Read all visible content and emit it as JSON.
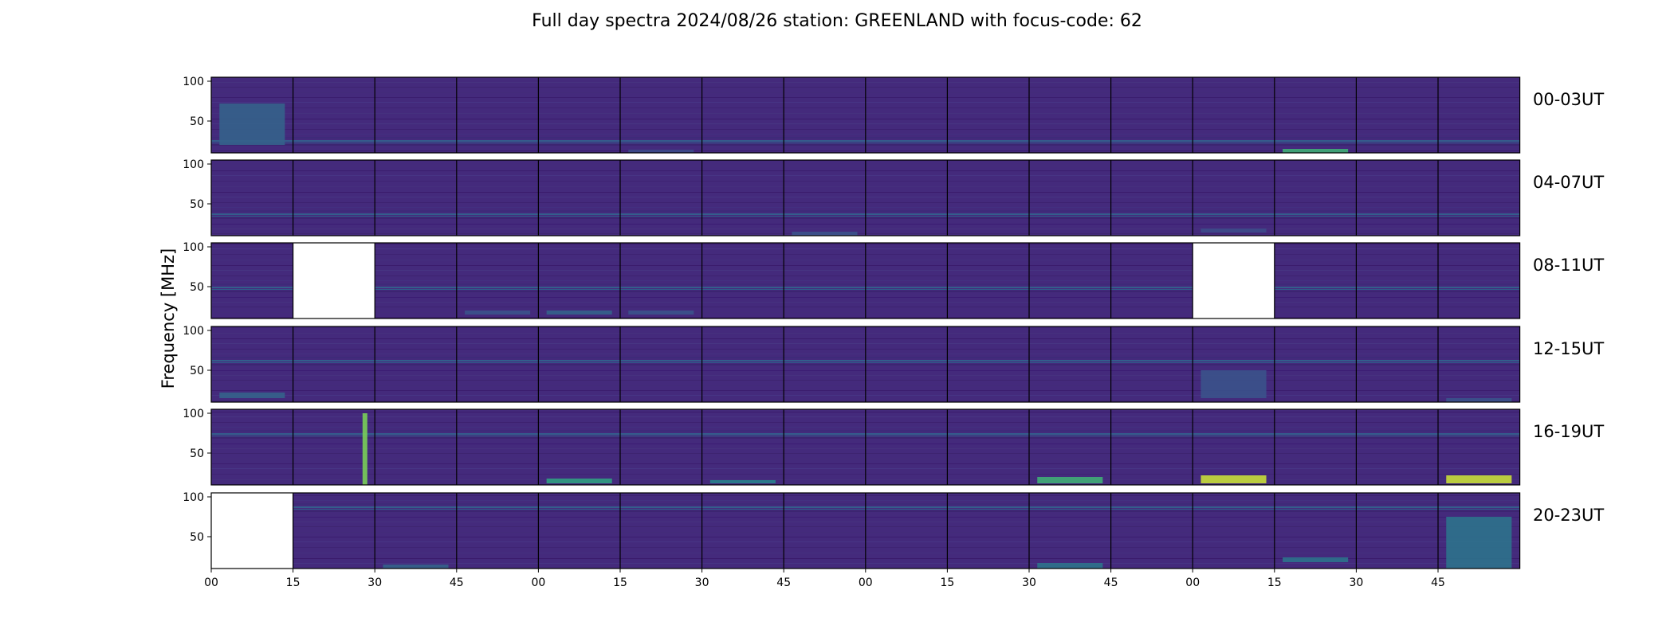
{
  "chart_data": {
    "type": "heatmap",
    "title": "Full day spectra 2024/08/26 station: GREENLAND with focus-code: 62",
    "ylabel": "Frequency [MHz]",
    "y_ticks": [
      "100",
      "50"
    ],
    "x_ticks": [
      "00",
      "15",
      "30",
      "45",
      "00",
      "15",
      "30",
      "45",
      "00",
      "15",
      "30",
      "45",
      "00",
      "15",
      "30",
      "45"
    ],
    "colormap": "viridis",
    "rows": [
      {
        "label": "00-03UT",
        "missing": [],
        "bursts": [
          {
            "panel": 0,
            "f_lo": 20,
            "f_hi": 72,
            "level": 0.35
          },
          {
            "panel": 13,
            "f_lo": 10,
            "f_hi": 15,
            "level": 0.6
          },
          {
            "panel": 5,
            "f_lo": 10,
            "f_hi": 14,
            "level": 0.25
          }
        ]
      },
      {
        "label": "04-07UT",
        "missing": [],
        "bursts": [
          {
            "panel": 7,
            "f_lo": 10,
            "f_hi": 15,
            "level": 0.3
          },
          {
            "panel": 12,
            "f_lo": 14,
            "f_hi": 19,
            "level": 0.25
          }
        ]
      },
      {
        "label": "08-11UT",
        "missing": [
          1,
          12
        ],
        "bursts": [
          {
            "panel": 3,
            "f_lo": 15,
            "f_hi": 20,
            "level": 0.3
          },
          {
            "panel": 4,
            "f_lo": 15,
            "f_hi": 20,
            "level": 0.35
          },
          {
            "panel": 5,
            "f_lo": 15,
            "f_hi": 20,
            "level": 0.3
          }
        ]
      },
      {
        "label": "12-15UT",
        "missing": [],
        "bursts": [
          {
            "panel": 0,
            "f_lo": 15,
            "f_hi": 22,
            "level": 0.35
          },
          {
            "panel": 12,
            "f_lo": 15,
            "f_hi": 50,
            "level": 0.3
          },
          {
            "panel": 15,
            "f_lo": 10,
            "f_hi": 15,
            "level": 0.3
          }
        ]
      },
      {
        "label": "16-19UT",
        "missing": [],
        "bursts": [
          {
            "panel": 1,
            "f_lo": 10,
            "f_hi": 100,
            "level": 0.75
          },
          {
            "panel": 4,
            "f_lo": 12,
            "f_hi": 18,
            "level": 0.55
          },
          {
            "panel": 6,
            "f_lo": 12,
            "f_hi": 16,
            "level": 0.45
          },
          {
            "panel": 10,
            "f_lo": 12,
            "f_hi": 20,
            "level": 0.6
          },
          {
            "panel": 12,
            "f_lo": 12,
            "f_hi": 22,
            "level": 0.9
          },
          {
            "panel": 15,
            "f_lo": 12,
            "f_hi": 22,
            "level": 0.9
          }
        ]
      },
      {
        "label": "20-23UT",
        "missing": [
          0
        ],
        "bursts": [
          {
            "panel": 2,
            "f_lo": 10,
            "f_hi": 15,
            "level": 0.35
          },
          {
            "panel": 10,
            "f_lo": 10,
            "f_hi": 17,
            "level": 0.4
          },
          {
            "panel": 13,
            "f_lo": 18,
            "f_hi": 24,
            "level": 0.4
          },
          {
            "panel": 15,
            "f_lo": 10,
            "f_hi": 75,
            "level": 0.4
          }
        ]
      }
    ],
    "ylim": [
      10,
      105
    ]
  }
}
